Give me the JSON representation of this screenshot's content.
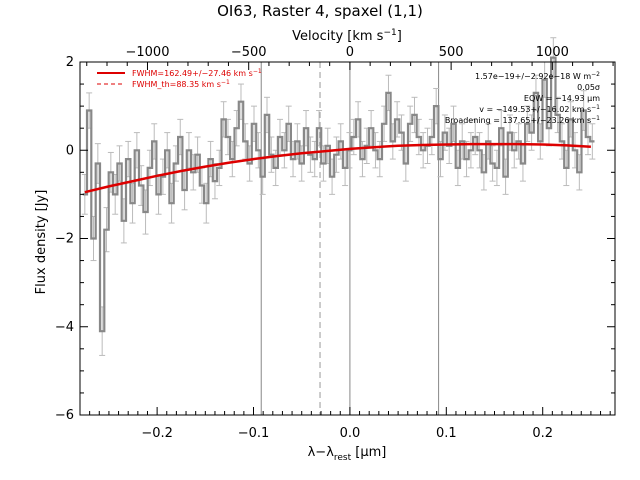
{
  "chart_data": {
    "type": "line",
    "title": "OI63, Raster 4, spaxel (1,1)",
    "xlabel": "λ−λ",
    "xlabel_sub": "rest",
    "xlabel_unit": " [μm]",
    "ylabel": "Flux density [Jy]",
    "top_axis_label_pre": "Velocity [km s",
    "top_axis_label_exp": "−1",
    "top_axis_label_post": "]",
    "xlim": [
      -0.28,
      0.275
    ],
    "ylim": [
      -6,
      2
    ],
    "x_ticks": [
      -0.2,
      -0.1,
      0.0,
      0.1,
      0.2
    ],
    "x_tick_labels": [
      "−0.2",
      "−0.1",
      "0.0",
      "0.1",
      "0.2"
    ],
    "y_ticks": [
      -6,
      -4,
      -2,
      0,
      2
    ],
    "y_tick_labels": [
      "−6",
      "−4",
      "−2",
      "0",
      "2"
    ],
    "velocity_ticks": [
      -1000,
      -500,
      0,
      500,
      1000
    ],
    "velocity_tick_labels": [
      "−1000",
      "−500",
      "0",
      "500",
      "1000"
    ],
    "velocity_per_micron": 4762,
    "vertical_lines_solid": [
      -0.092,
      0.0,
      0.092
    ],
    "vertical_line_dashed": -0.031,
    "legend": [
      {
        "text_pre": "FWHM=162.49+/−27.46 km s",
        "text_exp": "−1",
        "color": "#dd0000",
        "style": "solid"
      },
      {
        "text_pre": "FWHM_th=88.35 km s",
        "text_exp": "−1",
        "color": "#dd0000",
        "style": "dashed"
      }
    ],
    "annotations": [
      {
        "text_pre": "1.57e−19+/−2.92e−18 W m",
        "text_exp": "−2"
      },
      {
        "text_pre": "0.05σ",
        "text_exp": ""
      },
      {
        "text_pre": "EQW = −14.93 μm",
        "text_exp": ""
      },
      {
        "text_pre": "v = −149.53+/−16.02 km s",
        "text_exp": "−1"
      },
      {
        "text_pre": "Broadening = 137.65+/−23.26 km s",
        "text_exp": "−1"
      }
    ],
    "series": [
      {
        "style": "steps",
        "color": "#888888",
        "x": [
          -0.275,
          -0.2705,
          -0.266,
          -0.2615,
          -0.257,
          -0.2525,
          -0.248,
          -0.2435,
          -0.239,
          -0.2345,
          -0.23,
          -0.2255,
          -0.221,
          -0.2165,
          -0.212,
          -0.2075,
          -0.203,
          -0.1985,
          -0.194,
          -0.1895,
          -0.185,
          -0.1805,
          -0.176,
          -0.1715,
          -0.167,
          -0.1625,
          -0.158,
          -0.1535,
          -0.149,
          -0.1445,
          -0.14,
          -0.1355,
          -0.131,
          -0.1265,
          -0.122,
          -0.1175,
          -0.113,
          -0.1085,
          -0.104,
          -0.0995,
          -0.095,
          -0.0905,
          -0.086,
          -0.0815,
          -0.077,
          -0.0725,
          -0.068,
          -0.0635,
          -0.059,
          -0.0545,
          -0.05,
          -0.0455,
          -0.041,
          -0.0365,
          -0.032,
          -0.0275,
          -0.023,
          -0.0185,
          -0.014,
          -0.0095,
          -0.005,
          -0.0005,
          0.004,
          0.0085,
          0.013,
          0.0175,
          0.022,
          0.0265,
          0.031,
          0.0355,
          0.04,
          0.0445,
          0.049,
          0.0535,
          0.058,
          0.0625,
          0.067,
          0.0715,
          0.076,
          0.0805,
          0.085,
          0.0895,
          0.094,
          0.0985,
          0.103,
          0.1075,
          0.112,
          0.1165,
          0.121,
          0.1255,
          0.13,
          0.1345,
          0.139,
          0.1435,
          0.148,
          0.1525,
          0.157,
          0.1615,
          0.166,
          0.1705,
          0.175,
          0.1795,
          0.184,
          0.1885,
          0.193,
          0.1975,
          0.202,
          0.2065,
          0.211,
          0.2155,
          0.22,
          0.2245,
          0.229,
          0.2335,
          0.238,
          0.2425,
          0.247,
          0.2515
        ],
        "values": [
          -1.0,
          0.9,
          -2.0,
          -0.3,
          -4.1,
          -1.8,
          -0.5,
          -1.0,
          -0.3,
          -1.6,
          -0.2,
          -1.2,
          0.0,
          -0.8,
          -1.4,
          -0.4,
          0.2,
          -1.0,
          -0.6,
          0.0,
          -1.2,
          -0.3,
          0.3,
          -0.9,
          0.0,
          -0.5,
          -0.1,
          -0.8,
          -1.2,
          -0.2,
          -0.7,
          -0.4,
          0.7,
          0.3,
          -0.2,
          0.5,
          1.1,
          0.2,
          -0.3,
          0.6,
          0.0,
          -0.6,
          0.8,
          -0.1,
          -0.4,
          0.3,
          0.0,
          0.6,
          -0.2,
          0.2,
          -0.3,
          0.5,
          -0.1,
          -0.2,
          0.5,
          -0.3,
          0.1,
          -0.6,
          -0.1,
          0.2,
          -0.4,
          0.0,
          0.3,
          0.7,
          -0.2,
          0.1,
          0.5,
          0.0,
          -0.2,
          0.6,
          1.3,
          0.2,
          0.7,
          0.4,
          -0.3,
          0.6,
          0.8,
          0.3,
          0.0,
          0.1,
          0.3,
          1.0,
          -0.2,
          0.4,
          0.1,
          0.6,
          -0.4,
          0.2,
          -0.2,
          0.0,
          0.3,
          0.0,
          -0.5,
          0.2,
          -0.3,
          -0.4,
          0.5,
          -0.6,
          0.4,
          0.0,
          0.2,
          -0.3,
          0.6,
          0.4,
          1.3,
          0.2,
          1.6,
          0.5,
          2.1,
          0.8,
          0.2,
          -0.4,
          0.7,
          0.0,
          -0.5,
          0.9,
          0.3,
          0.2
        ],
        "errors": [
          0.45,
          0.4,
          0.5,
          0.45,
          0.55,
          0.5,
          0.45,
          0.45,
          0.4,
          0.5,
          0.4,
          0.45,
          0.4,
          0.45,
          0.5,
          0.4,
          0.4,
          0.45,
          0.4,
          0.4,
          0.45,
          0.4,
          0.4,
          0.45,
          0.4,
          0.4,
          0.4,
          0.4,
          0.45,
          0.4,
          0.4,
          0.4,
          0.4,
          0.4,
          0.4,
          0.4,
          0.4,
          0.4,
          0.4,
          0.4,
          0.4,
          0.4,
          0.4,
          0.4,
          0.4,
          0.4,
          0.4,
          0.4,
          0.4,
          0.4,
          0.4,
          0.4,
          0.4,
          0.4,
          0.4,
          0.4,
          0.4,
          0.4,
          0.4,
          0.4,
          0.4,
          0.4,
          0.4,
          0.4,
          0.4,
          0.4,
          0.4,
          0.4,
          0.4,
          0.4,
          0.4,
          0.4,
          0.4,
          0.4,
          0.4,
          0.4,
          0.4,
          0.4,
          0.4,
          0.4,
          0.4,
          0.4,
          0.4,
          0.4,
          0.4,
          0.4,
          0.4,
          0.4,
          0.4,
          0.4,
          0.4,
          0.4,
          0.4,
          0.4,
          0.4,
          0.4,
          0.4,
          0.4,
          0.4,
          0.4,
          0.4,
          0.4,
          0.4,
          0.4,
          0.4,
          0.4,
          0.4,
          0.4,
          0.45,
          0.4,
          0.4,
          0.4,
          0.4,
          0.4,
          0.4,
          0.45,
          0.4,
          0.4
        ]
      },
      {
        "style": "line",
        "color": "#dd0000",
        "x": [
          -0.275,
          -0.25,
          -0.225,
          -0.2,
          -0.175,
          -0.15,
          -0.125,
          -0.1,
          -0.075,
          -0.05,
          -0.025,
          0.0,
          0.025,
          0.05,
          0.075,
          0.1,
          0.125,
          0.15,
          0.175,
          0.2,
          0.225,
          0.25
        ],
        "values": [
          -0.95,
          -0.82,
          -0.7,
          -0.58,
          -0.47,
          -0.37,
          -0.28,
          -0.2,
          -0.13,
          -0.07,
          -0.02,
          0.03,
          0.07,
          0.1,
          0.12,
          0.13,
          0.14,
          0.14,
          0.14,
          0.13,
          0.11,
          0.08
        ]
      }
    ]
  }
}
